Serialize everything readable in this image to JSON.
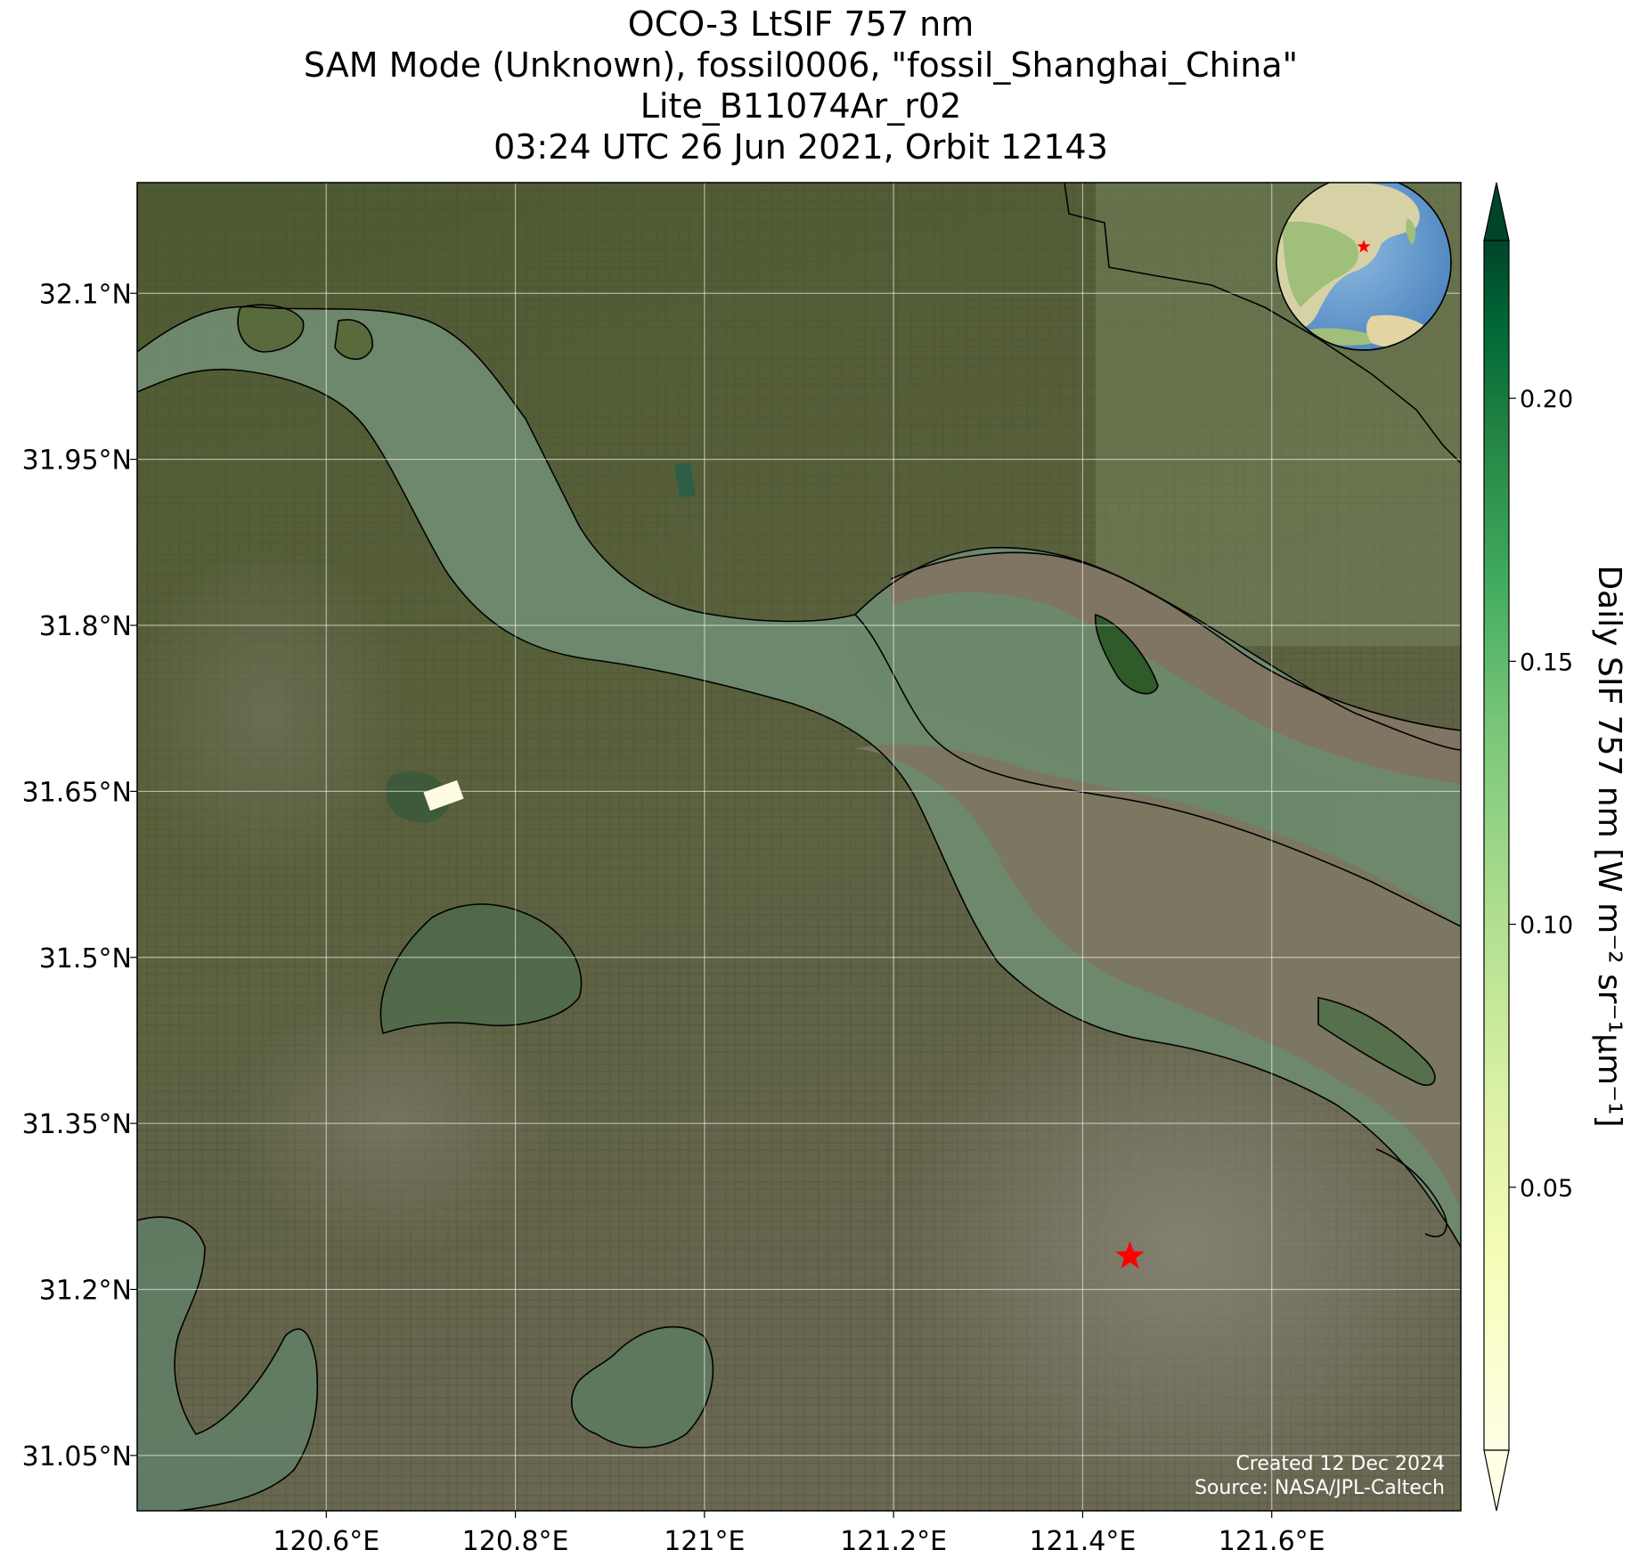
{
  "title": {
    "line1": "OCO-3 LtSIF 757 nm",
    "line2": "SAM Mode (Unknown), fossil0006, \"fossil_Shanghai_China\"",
    "line3": "Lite_B11074Ar_r02",
    "line4": "03:24 UTC 26 Jun 2021, Orbit 12143"
  },
  "map": {
    "lon_range": [
      120.4,
      121.8
    ],
    "lat_range": [
      31.0,
      32.2
    ],
    "lon_ticks": [
      {
        "value": 120.6,
        "label": "120.6°E"
      },
      {
        "value": 120.8,
        "label": "120.8°E"
      },
      {
        "value": 121.0,
        "label": "121°E"
      },
      {
        "value": 121.2,
        "label": "121.2°E"
      },
      {
        "value": 121.4,
        "label": "121.4°E"
      },
      {
        "value": 121.6,
        "label": "121.6°E"
      }
    ],
    "lat_ticks": [
      {
        "value": 32.1,
        "label": "32.1°N"
      },
      {
        "value": 31.95,
        "label": "31.95°N"
      },
      {
        "value": 31.8,
        "label": "31.8°N"
      },
      {
        "value": 31.65,
        "label": "31.65°N"
      },
      {
        "value": 31.5,
        "label": "31.5°N"
      },
      {
        "value": 31.35,
        "label": "31.35°N"
      },
      {
        "value": 31.2,
        "label": "31.2°N"
      },
      {
        "value": 31.05,
        "label": "31.05°N"
      }
    ],
    "target": {
      "lon": 121.45,
      "lat": 31.23,
      "marker_color": "#ff0000"
    },
    "inset_globe": {
      "center_region": "East Asia",
      "marker_color": "#ff0000"
    },
    "credit_line1": "Created 12 Dec 2024",
    "credit_line2": "Source: NASA/JPL-Caltech"
  },
  "colorbar": {
    "label": "Daily SIF 757 nm [W m⁻² sr⁻¹μm⁻¹]",
    "range": [
      0.0,
      0.23
    ],
    "extend": "both",
    "colormap": "YlGn",
    "ticks": [
      {
        "value": 0.05,
        "label": "0.05"
      },
      {
        "value": 0.1,
        "label": "0.10"
      },
      {
        "value": 0.15,
        "label": "0.15"
      },
      {
        "value": 0.2,
        "label": "0.20"
      }
    ],
    "colors": {
      "low": "#ffffe5",
      "mid": "#78c679",
      "high": "#004529"
    }
  }
}
